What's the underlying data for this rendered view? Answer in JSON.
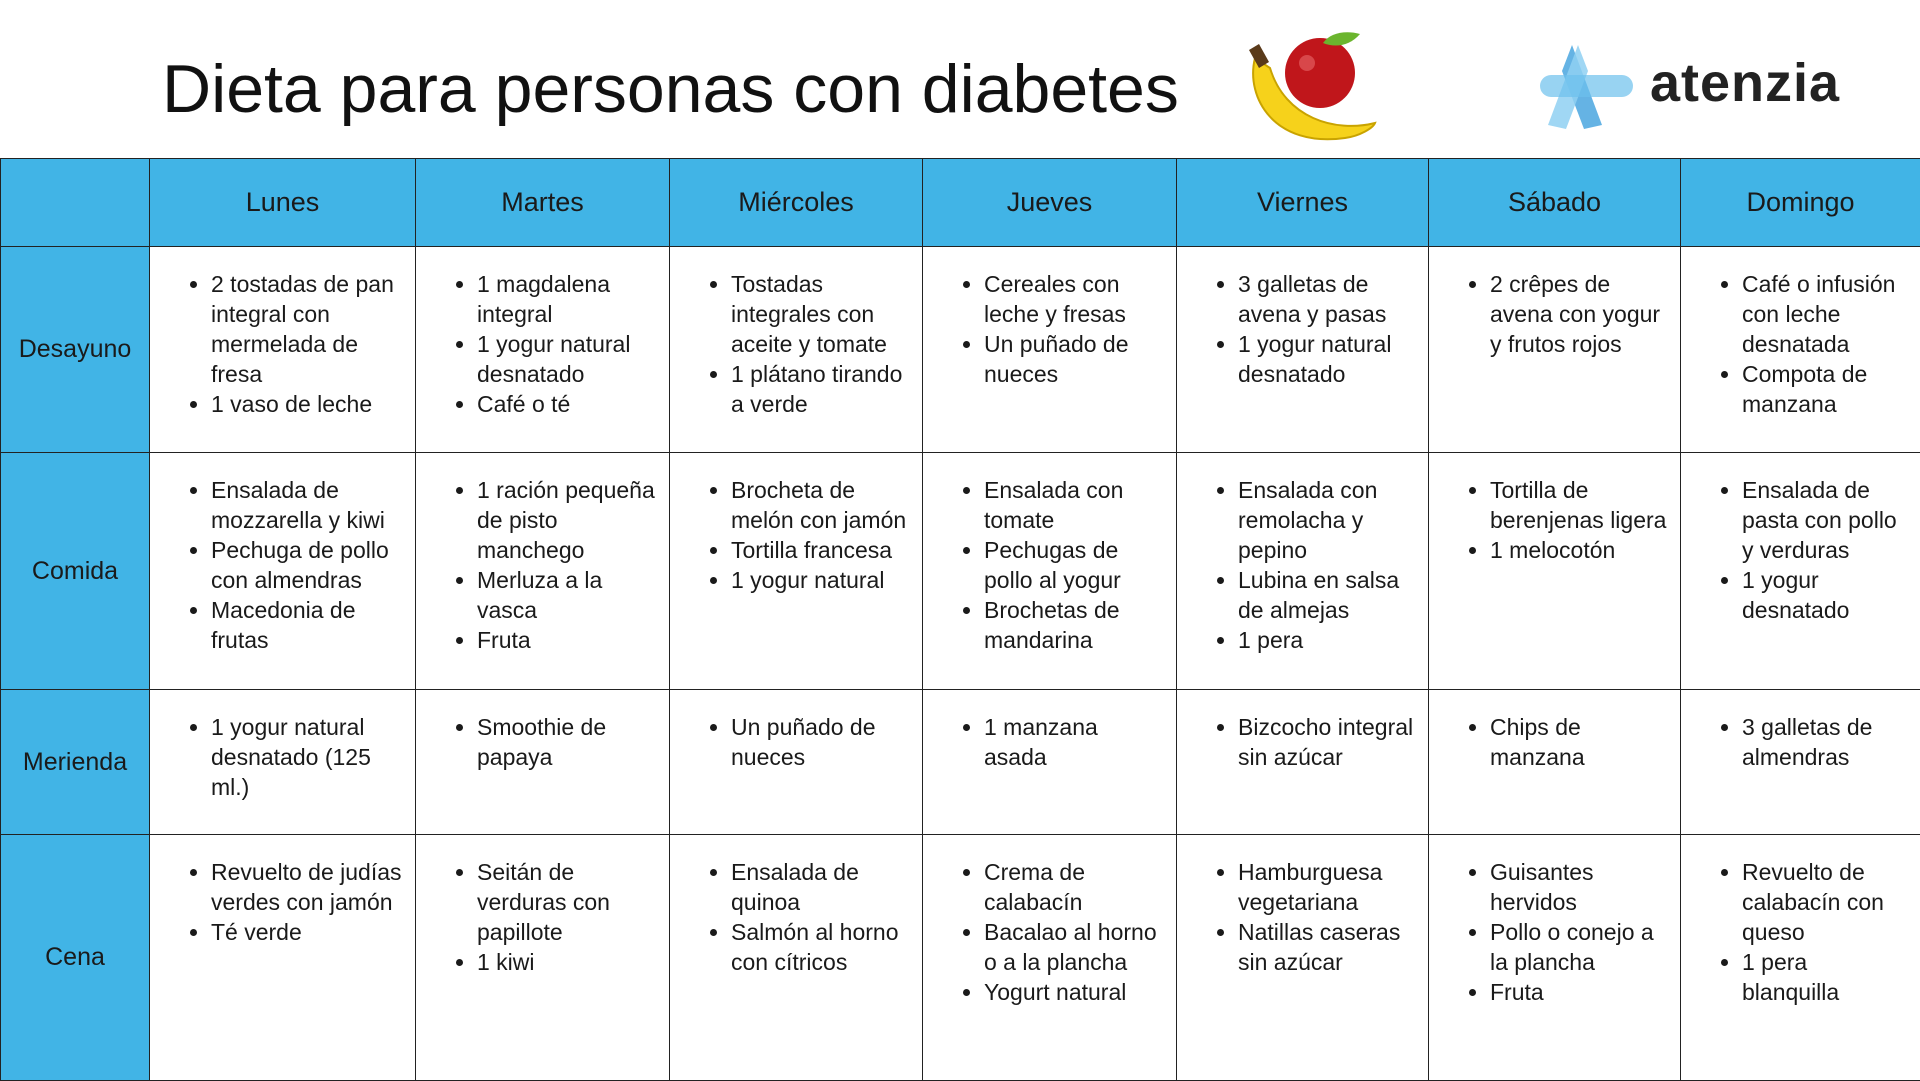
{
  "header": {
    "title": "Dieta para personas con diabetes",
    "logo": "atenzia"
  },
  "table": {
    "columns": [
      "Lunes",
      "Martes",
      "Miércoles",
      "Jueves",
      "Viernes",
      "Sábado",
      "Domingo"
    ],
    "rows": [
      {
        "meal": "Desayuno",
        "cells": [
          [
            "2 tostadas de pan integral con mermelada de fresa",
            "1 vaso de leche"
          ],
          [
            "1 magdalena integral",
            "1 yogur natural desnatado",
            "Café o té"
          ],
          [
            "Tostadas integrales con aceite y tomate",
            "1 plátano tirando a verde"
          ],
          [
            "Cereales con leche y fresas",
            "Un puñado de nueces"
          ],
          [
            "3 galletas de avena y pasas",
            "1 yogur natural desnatado"
          ],
          [
            "2 crêpes de avena con yogur y frutos rojos"
          ],
          [
            "Café o infusión con leche desnatada",
            "Compota de manzana"
          ]
        ]
      },
      {
        "meal": "Comida",
        "cells": [
          [
            "Ensalada de mozzarella y kiwi",
            "Pechuga de pollo con almendras",
            "Macedonia de frutas"
          ],
          [
            "1 ración pequeña de pisto manchego",
            "Merluza a la vasca",
            "Fruta"
          ],
          [
            "Brocheta de melón con jamón",
            "Tortilla francesa",
            "1 yogur natural"
          ],
          [
            "Ensalada con tomate",
            "Pechugas de pollo al yogur",
            "Brochetas de mandarina"
          ],
          [
            "Ensalada con remolacha y pepino",
            "Lubina en salsa de almejas",
            "1 pera"
          ],
          [
            "Tortilla de berenjenas ligera",
            "1 melocotón"
          ],
          [
            "Ensalada de pasta con pollo y verduras",
            "1 yogur desnatado"
          ]
        ]
      },
      {
        "meal": "Merienda",
        "cells": [
          [
            "1 yogur natural desnatado (125 ml.)"
          ],
          [
            "Smoothie de papaya"
          ],
          [
            "Un puñado de nueces"
          ],
          [
            "1 manzana asada"
          ],
          [
            "Bizcocho integral sin azúcar"
          ],
          [
            "Chips de manzana"
          ],
          [
            "3 galletas de almendras"
          ]
        ]
      },
      {
        "meal": "Cena",
        "cells": [
          [
            "Revuelto de judías verdes con jamón",
            "Té verde"
          ],
          [
            "Seitán de verduras con papillote",
            "1 kiwi"
          ],
          [
            "Ensalada de quinoa",
            "Salmón al horno con cítricos"
          ],
          [
            "Crema de calabacín",
            "Bacalao al horno o a la plancha",
            "Yogurt natural"
          ],
          [
            "Hamburguesa vegetariana",
            "Natillas caseras sin azúcar"
          ],
          [
            "Guisantes hervidos",
            "Pollo o conejo a la plancha",
            "Fruta"
          ],
          [
            "Revuelto de calabacín con queso",
            "1 pera blanquilla"
          ]
        ]
      }
    ]
  }
}
